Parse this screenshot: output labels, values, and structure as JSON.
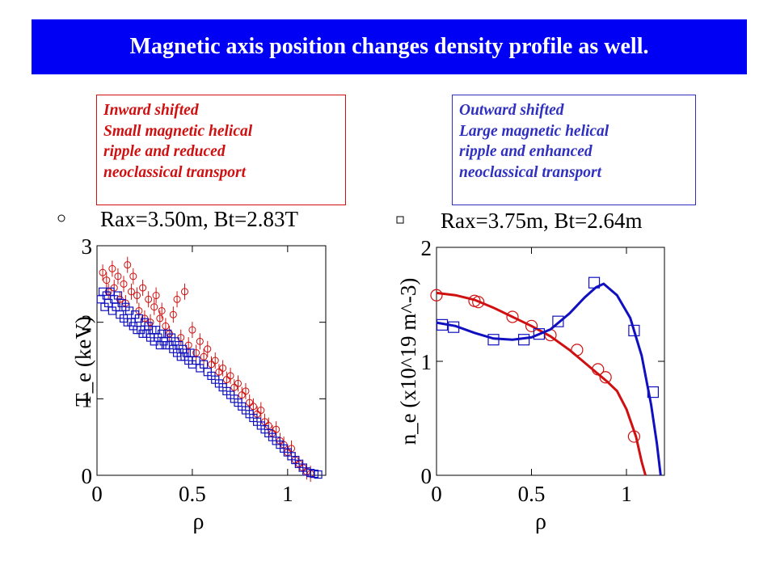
{
  "title": "Magnetic axis position changes density profile as well.",
  "notes": {
    "left": [
      "Inward shifted",
      "Small magnetic helical",
      "ripple and reduced",
      "neoclassical transport"
    ],
    "right": [
      "Outward shifted",
      "Large magnetic helical",
      "ripple and enhanced",
      "neoclassical transport"
    ]
  },
  "colors": {
    "title_bg": "#0000f5",
    "title_text": "#ffffff",
    "inward": "#d01010",
    "outward": "#1010c0",
    "axis": "#000000"
  },
  "chart_data": [
    {
      "type": "scatter",
      "title": "",
      "xlabel": "ρ",
      "ylabel": "T_e (keV)",
      "xlim": [
        0,
        1.2
      ],
      "ylim": [
        0,
        3
      ],
      "xticks": [
        "0",
        "0.5",
        "1"
      ],
      "xtick_values": [
        0,
        0.5,
        1
      ],
      "yticks": [
        "0",
        "1",
        "2",
        "3"
      ],
      "ytick_values": [
        0,
        1,
        2,
        3
      ],
      "legend": [
        {
          "marker": "circle",
          "label": "Rax=3.50m, Bt=2.83T"
        }
      ],
      "series": [
        {
          "name": "Rax=3.50m, Bt=2.83T",
          "marker": "circle-with-errorbar",
          "color": "#d01010",
          "points": [
            [
              0.03,
              2.65
            ],
            [
              0.05,
              2.55
            ],
            [
              0.06,
              2.4
            ],
            [
              0.08,
              2.7
            ],
            [
              0.09,
              2.45
            ],
            [
              0.11,
              2.6
            ],
            [
              0.12,
              2.3
            ],
            [
              0.14,
              2.5
            ],
            [
              0.15,
              2.25
            ],
            [
              0.16,
              2.75
            ],
            [
              0.18,
              2.4
            ],
            [
              0.19,
              2.6
            ],
            [
              0.21,
              2.35
            ],
            [
              0.22,
              2.15
            ],
            [
              0.24,
              2.45
            ],
            [
              0.25,
              2.05
            ],
            [
              0.27,
              2.3
            ],
            [
              0.28,
              2.0
            ],
            [
              0.3,
              2.2
            ],
            [
              0.31,
              2.35
            ],
            [
              0.33,
              2.05
            ],
            [
              0.34,
              2.15
            ],
            [
              0.36,
              1.95
            ],
            [
              0.38,
              1.85
            ],
            [
              0.4,
              2.1
            ],
            [
              0.42,
              2.3
            ],
            [
              0.44,
              1.8
            ],
            [
              0.46,
              2.4
            ],
            [
              0.48,
              1.7
            ],
            [
              0.5,
              1.9
            ],
            [
              0.52,
              1.6
            ],
            [
              0.54,
              1.75
            ],
            [
              0.56,
              1.55
            ],
            [
              0.58,
              1.65
            ],
            [
              0.6,
              1.45
            ],
            [
              0.62,
              1.5
            ],
            [
              0.64,
              1.35
            ],
            [
              0.66,
              1.4
            ],
            [
              0.68,
              1.25
            ],
            [
              0.7,
              1.3
            ],
            [
              0.72,
              1.15
            ],
            [
              0.74,
              1.2
            ],
            [
              0.76,
              1.05
            ],
            [
              0.78,
              1.1
            ],
            [
              0.8,
              0.95
            ],
            [
              0.82,
              0.9
            ],
            [
              0.84,
              0.8
            ],
            [
              0.86,
              0.85
            ],
            [
              0.88,
              0.7
            ],
            [
              0.9,
              0.65
            ],
            [
              0.92,
              0.55
            ],
            [
              0.94,
              0.6
            ],
            [
              0.96,
              0.45
            ],
            [
              0.98,
              0.4
            ],
            [
              1.0,
              0.3
            ],
            [
              1.02,
              0.35
            ],
            [
              1.04,
              0.2
            ],
            [
              1.06,
              0.15
            ],
            [
              1.08,
              0.1
            ],
            [
              1.1,
              0.05
            ],
            [
              1.12,
              0.02
            ]
          ]
        },
        {
          "name": "",
          "marker": "square",
          "color": "#1010c0",
          "points": [
            [
              0.02,
              2.3
            ],
            [
              0.03,
              2.4
            ],
            [
              0.04,
              2.2
            ],
            [
              0.05,
              2.35
            ],
            [
              0.06,
              2.25
            ],
            [
              0.07,
              2.4
            ],
            [
              0.08,
              2.15
            ],
            [
              0.09,
              2.3
            ],
            [
              0.1,
              2.2
            ],
            [
              0.11,
              2.35
            ],
            [
              0.12,
              2.1
            ],
            [
              0.13,
              2.25
            ],
            [
              0.14,
              2.05
            ],
            [
              0.15,
              2.2
            ],
            [
              0.16,
              2.0
            ],
            [
              0.17,
              2.15
            ],
            [
              0.18,
              2.0
            ],
            [
              0.19,
              1.95
            ],
            [
              0.2,
              2.1
            ],
            [
              0.21,
              1.9
            ],
            [
              0.22,
              2.05
            ],
            [
              0.23,
              1.9
            ],
            [
              0.24,
              1.85
            ],
            [
              0.25,
              2.0
            ],
            [
              0.26,
              1.85
            ],
            [
              0.27,
              1.95
            ],
            [
              0.28,
              1.8
            ],
            [
              0.29,
              1.9
            ],
            [
              0.3,
              1.75
            ],
            [
              0.31,
              1.9
            ],
            [
              0.32,
              1.8
            ],
            [
              0.33,
              1.7
            ],
            [
              0.34,
              1.85
            ],
            [
              0.35,
              1.75
            ],
            [
              0.36,
              1.7
            ],
            [
              0.37,
              1.85
            ],
            [
              0.38,
              1.7
            ],
            [
              0.39,
              1.8
            ],
            [
              0.4,
              1.65
            ],
            [
              0.41,
              1.75
            ],
            [
              0.42,
              1.6
            ],
            [
              0.43,
              1.7
            ],
            [
              0.44,
              1.55
            ],
            [
              0.45,
              1.65
            ],
            [
              0.46,
              1.55
            ],
            [
              0.47,
              1.6
            ],
            [
              0.48,
              1.5
            ],
            [
              0.49,
              1.6
            ],
            [
              0.5,
              1.45
            ],
            [
              0.52,
              1.5
            ],
            [
              0.54,
              1.4
            ],
            [
              0.56,
              1.45
            ],
            [
              0.58,
              1.35
            ],
            [
              0.6,
              1.3
            ],
            [
              0.62,
              1.25
            ],
            [
              0.64,
              1.2
            ],
            [
              0.66,
              1.15
            ],
            [
              0.68,
              1.1
            ],
            [
              0.7,
              1.05
            ],
            [
              0.72,
              1.0
            ],
            [
              0.74,
              0.95
            ],
            [
              0.76,
              0.9
            ],
            [
              0.78,
              0.85
            ],
            [
              0.8,
              0.8
            ],
            [
              0.82,
              0.75
            ],
            [
              0.84,
              0.7
            ],
            [
              0.86,
              0.65
            ],
            [
              0.88,
              0.6
            ],
            [
              0.9,
              0.55
            ],
            [
              0.92,
              0.5
            ],
            [
              0.94,
              0.45
            ],
            [
              0.96,
              0.4
            ],
            [
              0.98,
              0.35
            ],
            [
              1.0,
              0.3
            ],
            [
              1.02,
              0.25
            ],
            [
              1.04,
              0.2
            ],
            [
              1.06,
              0.15
            ],
            [
              1.08,
              0.1
            ],
            [
              1.1,
              0.05
            ],
            [
              1.12,
              0.03
            ],
            [
              1.14,
              0.02
            ],
            [
              1.16,
              0.01
            ]
          ]
        }
      ]
    },
    {
      "type": "line",
      "title": "",
      "xlabel": "ρ",
      "ylabel": "n_e (x10^19 m^-3)",
      "xlim": [
        0,
        1.2
      ],
      "ylim": [
        0,
        2
      ],
      "xticks": [
        "0",
        "0.5",
        "1"
      ],
      "xtick_values": [
        0,
        0.5,
        1
      ],
      "yticks": [
        "0",
        "1",
        "2"
      ],
      "ytick_values": [
        0,
        1,
        2
      ],
      "legend": [
        {
          "marker": "square",
          "label": "Rax=3.75m, Bt=2.64m"
        }
      ],
      "series": [
        {
          "name": "",
          "color": "#d01010",
          "marker": "circle",
          "line": [
            [
              0,
              1.6
            ],
            [
              0.1,
              1.58
            ],
            [
              0.2,
              1.54
            ],
            [
              0.3,
              1.47
            ],
            [
              0.4,
              1.39
            ],
            [
              0.5,
              1.31
            ],
            [
              0.6,
              1.22
            ],
            [
              0.7,
              1.1
            ],
            [
              0.8,
              0.96
            ],
            [
              0.9,
              0.82
            ],
            [
              0.95,
              0.74
            ],
            [
              1.0,
              0.58
            ],
            [
              1.05,
              0.34
            ],
            [
              1.08,
              0.12
            ],
            [
              1.1,
              0.0
            ]
          ],
          "points": [
            [
              0.0,
              1.58
            ],
            [
              0.2,
              1.53
            ],
            [
              0.22,
              1.52
            ],
            [
              0.4,
              1.39
            ],
            [
              0.5,
              1.31
            ],
            [
              0.6,
              1.23
            ],
            [
              0.74,
              1.1
            ],
            [
              0.85,
              0.93
            ],
            [
              0.89,
              0.86
            ],
            [
              1.04,
              0.34
            ]
          ]
        },
        {
          "name": "",
          "color": "#1010c0",
          "marker": "square",
          "line": [
            [
              0,
              1.34
            ],
            [
              0.1,
              1.31
            ],
            [
              0.2,
              1.25
            ],
            [
              0.3,
              1.2
            ],
            [
              0.4,
              1.19
            ],
            [
              0.5,
              1.21
            ],
            [
              0.6,
              1.28
            ],
            [
              0.7,
              1.42
            ],
            [
              0.78,
              1.56
            ],
            [
              0.84,
              1.65
            ],
            [
              0.88,
              1.68
            ],
            [
              0.95,
              1.58
            ],
            [
              1.02,
              1.38
            ],
            [
              1.08,
              1.05
            ],
            [
              1.13,
              0.62
            ],
            [
              1.16,
              0.28
            ],
            [
              1.18,
              0.0
            ]
          ],
          "points": [
            [
              0.03,
              1.32
            ],
            [
              0.09,
              1.3
            ],
            [
              0.3,
              1.19
            ],
            [
              0.46,
              1.19
            ],
            [
              0.54,
              1.24
            ],
            [
              0.64,
              1.35
            ],
            [
              0.83,
              1.69
            ],
            [
              1.04,
              1.27
            ],
            [
              1.14,
              0.73
            ]
          ]
        }
      ]
    }
  ]
}
